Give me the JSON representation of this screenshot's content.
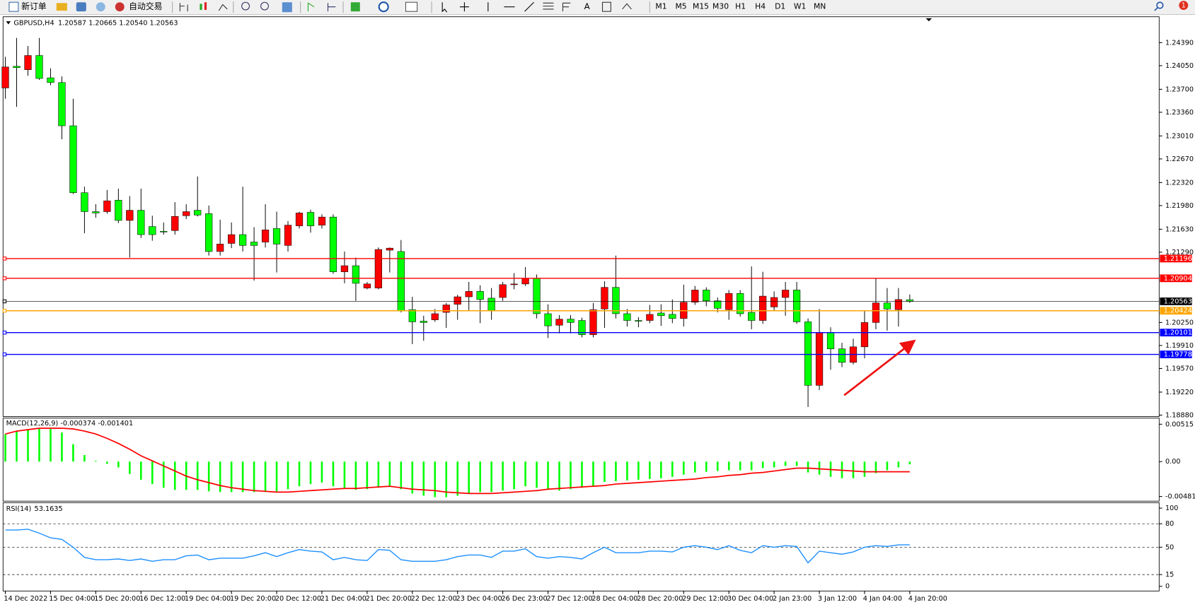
{
  "toolbar": {
    "new_order": "新订单",
    "auto_trading": "自动交易",
    "text_tool": "A",
    "timeframes": [
      "M1",
      "M5",
      "M15",
      "M30",
      "H1",
      "H4",
      "D1",
      "W1",
      "MN"
    ],
    "notifications": "1"
  },
  "chart_data": [
    {
      "type": "candlestick",
      "title": "GBPUSD,H4",
      "info": "1.20587 1.20665 1.20540 1.20563",
      "categories": [
        "14 Dec 2022",
        null,
        null,
        null,
        "15 Dec 04:00",
        null,
        null,
        null,
        "15 Dec 20:00",
        null,
        null,
        null,
        "16 Dec 12:00",
        null,
        null,
        null,
        "19 Dec 04:00",
        null,
        null,
        null,
        "19 Dec 20:00",
        null,
        null,
        null,
        "20 Dec 12:00",
        null,
        null,
        null,
        "21 Dec 04:00",
        null,
        null,
        null,
        "21 Dec 20:00",
        null,
        null,
        null,
        "22 Dec 12:00",
        null,
        null,
        null,
        "23 Dec 04:00",
        null,
        null,
        null,
        "26 Dec 23:00",
        null,
        null,
        null,
        "27 Dec 12:00",
        null,
        null,
        null,
        "28 Dec 04:00",
        null,
        null,
        null,
        "28 Dec 20:00",
        null,
        null,
        null,
        "29 Dec 12:00",
        null,
        null,
        null,
        "30 Dec 04:00",
        null,
        null,
        null,
        "2 Jan 23:00",
        null,
        null,
        null,
        "3 Jan 12:00",
        null,
        null,
        null,
        "4 Jan 04:00",
        null,
        null,
        null,
        "4 Jan 20:00"
      ],
      "open": [
        1.2372,
        1.2404,
        1.2399,
        1.242,
        1.2387,
        1.238,
        1.2316,
        1.2217,
        1.2189,
        1.2189,
        1.2206,
        1.2176,
        1.2191,
        1.2167,
        1.216,
        1.2161,
        1.2183,
        1.2191,
        1.2186,
        1.213,
        1.2142,
        1.2155,
        1.2144,
        1.2144,
        1.2164,
        1.2139,
        1.2168,
        1.2188,
        1.2169,
        1.2181,
        1.21,
        1.2109,
        1.2076,
        1.2076,
        1.2132,
        1.213,
        1.2044,
        1.2027,
        1.2029,
        1.204,
        1.2052,
        1.2063,
        1.2071,
        1.2061,
        1.2062,
        1.2081,
        1.2082,
        1.209,
        1.2038,
        1.2021,
        1.203,
        1.2028,
        1.2007,
        1.2045,
        1.2077,
        1.2038,
        1.2028,
        1.2028,
        1.2039,
        1.2037,
        1.2031,
        1.2055,
        1.2073,
        1.2057,
        1.2044,
        1.2068,
        1.204,
        1.2028,
        1.2048,
        1.2062,
        1.2073,
        1.2026,
        1.1932,
        1.201,
        1.1986,
        1.1966,
        1.1989,
        1.2025,
        1.2054,
        1.2044,
        1.20587
      ],
      "high": [
        1.2418,
        1.2446,
        1.2434,
        1.2446,
        1.2401,
        1.2389,
        1.2356,
        1.2226,
        1.22,
        1.2221,
        1.2223,
        1.2212,
        1.2223,
        1.2183,
        1.2173,
        1.2203,
        1.22,
        1.2241,
        1.2198,
        1.2177,
        1.2173,
        1.2226,
        1.2166,
        1.22,
        1.2189,
        1.2175,
        1.2189,
        1.2192,
        1.2185,
        1.2185,
        1.213,
        1.2121,
        1.2085,
        1.2136,
        1.2136,
        1.2147,
        1.2063,
        1.2035,
        1.2045,
        1.2054,
        1.2066,
        1.2085,
        1.208,
        1.2076,
        1.2085,
        1.2098,
        1.2107,
        1.2096,
        1.2052,
        1.2036,
        1.2036,
        1.2032,
        1.2054,
        1.2086,
        1.2124,
        1.2045,
        1.2033,
        1.2051,
        1.2052,
        1.2059,
        1.2081,
        1.2079,
        1.2077,
        1.2062,
        1.2073,
        1.2073,
        1.2108,
        1.21,
        1.2071,
        1.2085,
        1.2085,
        1.2031,
        1.2045,
        1.2018,
        1.1995,
        1.2001,
        1.2043,
        1.209,
        1.2076,
        1.2076,
        1.20665
      ],
      "low": [
        1.2356,
        1.2344,
        1.239,
        1.2384,
        1.2376,
        1.2296,
        1.2215,
        1.2157,
        1.218,
        1.2186,
        1.2172,
        1.2121,
        1.215,
        1.2146,
        1.2155,
        1.2155,
        1.2178,
        1.2182,
        1.2124,
        1.2124,
        1.2135,
        1.213,
        1.2087,
        1.2136,
        1.2099,
        1.213,
        1.2164,
        1.2158,
        1.2164,
        1.2097,
        1.2083,
        1.2057,
        1.2074,
        1.2074,
        1.2099,
        1.204,
        1.1993,
        1.1998,
        1.2026,
        1.2017,
        1.2029,
        1.2042,
        1.2024,
        1.2029,
        1.2057,
        1.2074,
        1.2079,
        1.2031,
        1.2002,
        1.2009,
        1.2009,
        1.2003,
        1.2003,
        1.2017,
        1.2031,
        1.2019,
        1.2018,
        1.2024,
        1.202,
        1.2024,
        1.2019,
        1.2051,
        1.2049,
        1.204,
        1.2029,
        1.2034,
        1.2015,
        1.2023,
        1.2042,
        1.2035,
        1.2023,
        1.19,
        1.1925,
        1.1955,
        1.1959,
        1.1963,
        1.1972,
        1.2015,
        1.2013,
        1.2019,
        1.2054
      ],
      "close": [
        1.2403,
        1.2402,
        1.242,
        1.2386,
        1.238,
        1.2316,
        1.2217,
        1.2189,
        1.2187,
        1.2205,
        1.2176,
        1.2191,
        1.2155,
        1.2155,
        1.2159,
        1.2182,
        1.2189,
        1.2184,
        1.213,
        1.2141,
        1.2155,
        1.2139,
        1.2139,
        1.2162,
        1.2141,
        1.2169,
        1.2187,
        1.2168,
        1.2181,
        1.21,
        1.2109,
        1.2083,
        1.2082,
        1.2133,
        1.2135,
        1.2042,
        1.2026,
        1.2025,
        1.2038,
        1.2051,
        1.2063,
        1.2071,
        1.2059,
        1.2043,
        1.2081,
        1.2082,
        1.209,
        1.2038,
        1.202,
        1.203,
        1.2025,
        1.2007,
        1.2044,
        1.2077,
        1.2038,
        1.2028,
        1.2027,
        1.2037,
        1.2035,
        1.2031,
        1.2055,
        1.2073,
        1.2057,
        1.2046,
        1.2068,
        1.2038,
        1.2028,
        1.2064,
        1.2062,
        1.2073,
        1.2026,
        1.1932,
        1.201,
        1.1986,
        1.1966,
        1.1989,
        1.2025,
        1.2054,
        1.2045,
        1.2059,
        1.20563
      ],
      "up_color": "#ff0000",
      "down_color": "#00ff00",
      "ylim": [
        1.18858,
        1.24773
      ],
      "yticks": [
        {
          "value": 1.2439,
          "label": "1.24390"
        },
        {
          "value": 1.2405,
          "label": "1.24050"
        },
        {
          "value": 1.237,
          "label": "1.23700"
        },
        {
          "value": 1.2336,
          "label": "1.23360"
        },
        {
          "value": 1.2301,
          "label": "1.23010"
        },
        {
          "value": 1.2267,
          "label": "1.22670"
        },
        {
          "value": 1.2232,
          "label": "1.22320"
        },
        {
          "value": 1.2198,
          "label": "1.21980"
        },
        {
          "value": 1.2163,
          "label": "1.21630"
        },
        {
          "value": 1.2129,
          "label": "1.21290"
        },
        {
          "value": 1.2025,
          "label": "1.20250"
        },
        {
          "value": 1.1991,
          "label": "1.19910"
        },
        {
          "value": 1.1957,
          "label": "1.19570"
        },
        {
          "value": 1.1922,
          "label": "1.19220"
        },
        {
          "value": 1.1888,
          "label": "1.18880"
        }
      ],
      "hlines": [
        {
          "value": 1.21196,
          "color": "#ff0000"
        },
        {
          "value": 1.20904,
          "color": "#ff0000"
        },
        {
          "value": 1.20563,
          "color": "#000000"
        },
        {
          "value": 1.20424,
          "color": "#ffa500"
        },
        {
          "value": 1.20101,
          "color": "#0000ff"
        },
        {
          "value": 1.19778,
          "color": "#0000ff"
        }
      ]
    },
    {
      "type": "macd",
      "title": "MACD(12,26,9)",
      "histogram": [
        0.0038,
        0.0042,
        0.0044,
        0.0046,
        0.0045,
        0.004,
        0.0024,
        0.0009,
        0.0001,
        -0.0003,
        -0.0008,
        -0.0017,
        -0.0025,
        -0.0031,
        -0.0036,
        -0.0039,
        -0.0039,
        -0.0039,
        -0.0041,
        -0.0042,
        -0.0042,
        -0.0042,
        -0.0042,
        -0.0042,
        -0.0041,
        -0.0038,
        -0.0034,
        -0.0031,
        -0.0029,
        -0.0034,
        -0.0037,
        -0.0039,
        -0.0038,
        -0.0036,
        -0.0034,
        -0.0038,
        -0.0044,
        -0.0047,
        -0.0049,
        -0.0049,
        -0.0047,
        -0.0044,
        -0.0042,
        -0.0042,
        -0.004,
        -0.0038,
        -0.0034,
        -0.0036,
        -0.0039,
        -0.004,
        -0.0038,
        -0.0036,
        -0.0034,
        -0.0028,
        -0.0027,
        -0.0026,
        -0.0025,
        -0.0024,
        -0.0023,
        -0.0021,
        -0.0018,
        -0.0015,
        -0.0014,
        -0.0013,
        -0.0012,
        -0.0012,
        -0.0012,
        -0.0009,
        -0.0008,
        -0.0006,
        -0.0006,
        -0.0015,
        -0.0018,
        -0.0021,
        -0.0023,
        -0.0023,
        -0.0021,
        -0.0016,
        -0.0012,
        -0.0008,
        -0.000374
      ],
      "signal": [
        0.0038,
        0.0042,
        0.0044,
        0.0046,
        0.0046,
        0.0046,
        0.0045,
        0.0042,
        0.0038,
        0.0032,
        0.0025,
        0.0017,
        0.0008,
        0.0001,
        -0.0006,
        -0.0013,
        -0.002,
        -0.0025,
        -0.0029,
        -0.0033,
        -0.0036,
        -0.0038,
        -0.004,
        -0.0041,
        -0.0042,
        -0.0042,
        -0.0041,
        -0.004,
        -0.0039,
        -0.0038,
        -0.0037,
        -0.0037,
        -0.0036,
        -0.0035,
        -0.0034,
        -0.0036,
        -0.0038,
        -0.0039,
        -0.004,
        -0.0042,
        -0.0043,
        -0.0044,
        -0.0044,
        -0.0044,
        -0.0043,
        -0.0042,
        -0.0041,
        -0.004,
        -0.0038,
        -0.0037,
        -0.0036,
        -0.0035,
        -0.0034,
        -0.0033,
        -0.0031,
        -0.003,
        -0.0029,
        -0.0028,
        -0.0027,
        -0.0026,
        -0.0025,
        -0.0024,
        -0.0022,
        -0.0021,
        -0.0019,
        -0.0018,
        -0.0016,
        -0.0015,
        -0.0013,
        -0.0011,
        -0.0009,
        -0.0009,
        -0.001,
        -0.0011,
        -0.0012,
        -0.0013,
        -0.0014,
        -0.0014,
        -0.0014,
        -0.0014,
        -0.001401
      ],
      "histogram_color": "#00ff00",
      "signal_color": "#ff0000",
      "ylim": [
        -0.00545,
        0.00599
      ],
      "yticks": [
        0.00515,
        {
          "value": 0,
          "label": "0.00"
        },
        -0.004811
      ]
    },
    {
      "type": "line",
      "title": "RSI(14)",
      "values": [
        72,
        72,
        73,
        68,
        62,
        60,
        50,
        37,
        34,
        34,
        35,
        33,
        35,
        32,
        34,
        34,
        39,
        40,
        34,
        36,
        36,
        36,
        39,
        43,
        38,
        43,
        47,
        45,
        44,
        34,
        37,
        34,
        33,
        47,
        46,
        34,
        32,
        32,
        32,
        34,
        38,
        40,
        40,
        37,
        45,
        45,
        48,
        38,
        36,
        38,
        37,
        35,
        43,
        50,
        43,
        43,
        43,
        45,
        45,
        44,
        50,
        52,
        50,
        47,
        52,
        46,
        43,
        52,
        50,
        52,
        51,
        30,
        45,
        43,
        41,
        44,
        50,
        52,
        51,
        53,
        53.1635
      ],
      "color": "#1e90ff",
      "ylim": [
        -6,
        107
      ],
      "yticks": [
        100,
        80,
        50,
        15,
        0
      ],
      "levels": [
        80,
        50,
        15
      ]
    }
  ]
}
